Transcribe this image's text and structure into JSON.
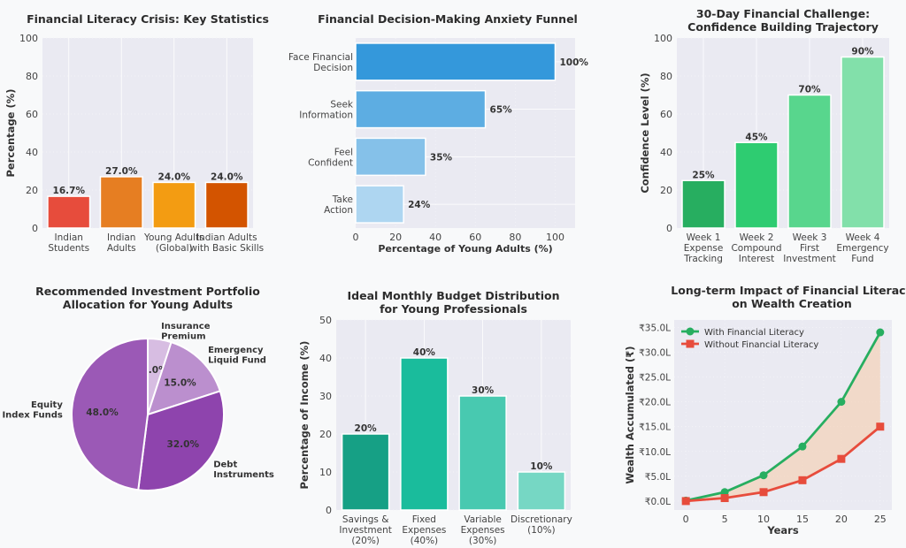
{
  "chart_data": [
    {
      "type": "bar",
      "title": "Financial Literacy Crisis: Key Statistics",
      "xlabel": "",
      "ylabel": "Percentage (%)",
      "ylim": [
        0,
        100
      ],
      "yticks": [
        "0",
        "20",
        "40",
        "60",
        "80",
        "100"
      ],
      "categories": [
        [
          "Indian",
          "Students"
        ],
        [
          "Indian",
          "Adults"
        ],
        [
          "Young Adults",
          "(Global)"
        ],
        [
          "Indian Adults",
          "with Basic Skills"
        ]
      ],
      "values": [
        16.7,
        27.0,
        24.0,
        24.0
      ],
      "data_labels": [
        "16.7%",
        "27.0%",
        "24.0%",
        "24.0%"
      ],
      "colors": [
        "#e74c3c",
        "#e67e22",
        "#f39c12",
        "#d35400"
      ],
      "grid": true
    },
    {
      "type": "bar",
      "orientation": "horizontal",
      "title": "Financial Decision-Making Anxiety Funnel",
      "xlabel": "Percentage of Young Adults (%)",
      "xlim": [
        0,
        110
      ],
      "xticks": [
        "0",
        "20",
        "40",
        "60",
        "80",
        "100"
      ],
      "categories": [
        [
          "Face Financial",
          "Decision"
        ],
        [
          "Seek",
          "Information"
        ],
        [
          "Feel",
          "Confident"
        ],
        [
          "Take",
          "Action"
        ]
      ],
      "values": [
        100,
        65,
        35,
        24
      ],
      "data_labels": [
        "100%",
        "65%",
        "35%",
        "24%"
      ],
      "colors": [
        "#3498db",
        "#5dade2",
        "#85c1e9",
        "#aed6f1"
      ],
      "grid": true
    },
    {
      "type": "bar",
      "title": "30-Day Financial Challenge:\nConfidence Building Trajectory",
      "ylabel": "Confidence Level (%)",
      "ylim": [
        0,
        100
      ],
      "yticks": [
        "0",
        "20",
        "40",
        "60",
        "80",
        "100"
      ],
      "categories": [
        [
          "Week 1",
          "Expense",
          "Tracking"
        ],
        [
          "Week 2",
          "Compound",
          "Interest"
        ],
        [
          "Week 3",
          "First",
          "Investment"
        ],
        [
          "Week 4",
          "Emergency",
          "Fund"
        ]
      ],
      "values": [
        25,
        45,
        70,
        90
      ],
      "data_labels": [
        "25%",
        "45%",
        "70%",
        "90%"
      ],
      "colors": [
        "#27ae60",
        "#2ecc71",
        "#58d68d",
        "#82e0aa"
      ],
      "grid": true
    },
    {
      "type": "pie",
      "title": "Recommended Investment Portfolio\nAllocation for Young Adults",
      "labels": [
        [
          "Insurance",
          "Premium"
        ],
        [
          "Emergency",
          "Liquid Fund"
        ],
        [
          "Debt",
          "Instruments"
        ],
        [
          "Equity",
          "Index Funds"
        ]
      ],
      "values": [
        5,
        15,
        32,
        48
      ],
      "data_labels": [
        "5.0%",
        "15.0%",
        "32.0%",
        "48.0%"
      ],
      "colors": [
        "#d7bde2",
        "#bb8fce",
        "#8e44ad",
        "#9b59b6"
      ]
    },
    {
      "type": "bar",
      "title": "Ideal Monthly Budget Distribution\nfor Young Professionals",
      "ylabel": "Percentage of Income (%)",
      "ylim": [
        0,
        50
      ],
      "yticks": [
        "0",
        "10",
        "20",
        "30",
        "40",
        "50"
      ],
      "categories": [
        [
          "Savings &",
          "Investment",
          "(20%)"
        ],
        [
          "Fixed",
          "Expenses",
          "(40%)"
        ],
        [
          "Variable",
          "Expenses",
          "(30%)"
        ],
        [
          "Discretionary",
          "(10%)"
        ]
      ],
      "values": [
        20,
        40,
        30,
        10
      ],
      "data_labels": [
        "20%",
        "40%",
        "30%",
        "10%"
      ],
      "colors": [
        "#16a085",
        "#1abc9c",
        "#48c9b0",
        "#76d7c4"
      ],
      "grid": true
    },
    {
      "type": "line",
      "title": "Long-term Impact of Financial Literacy\non Wealth Creation",
      "xlabel": "Years",
      "ylabel": "Wealth Accumulated (₹)",
      "xlim": [
        -1.5,
        26.5
      ],
      "ylim": [
        -1.8,
        36.5
      ],
      "xticks": [
        "0",
        "5",
        "10",
        "15",
        "20",
        "25"
      ],
      "yticks": [
        "₹0.0L",
        "₹5.0L",
        "₹10.0L",
        "₹15.0L",
        "₹20.0L",
        "₹25.0L",
        "₹30.0L",
        "₹35.0L"
      ],
      "x": [
        0,
        5,
        10,
        15,
        20,
        25
      ],
      "series": [
        {
          "name": "With Financial Literacy",
          "values": [
            0.1,
            1.8,
            5.2,
            11.0,
            20.0,
            34.0
          ],
          "color": "#27ae60",
          "marker": "circle"
        },
        {
          "name": "Without Financial Literacy",
          "values": [
            0.0,
            0.6,
            1.8,
            4.2,
            8.5,
            15.0
          ],
          "color": "#e74c3c",
          "marker": "square"
        }
      ],
      "fill_between_color": "#f5cba7",
      "legend": "top-left",
      "grid": true
    }
  ]
}
